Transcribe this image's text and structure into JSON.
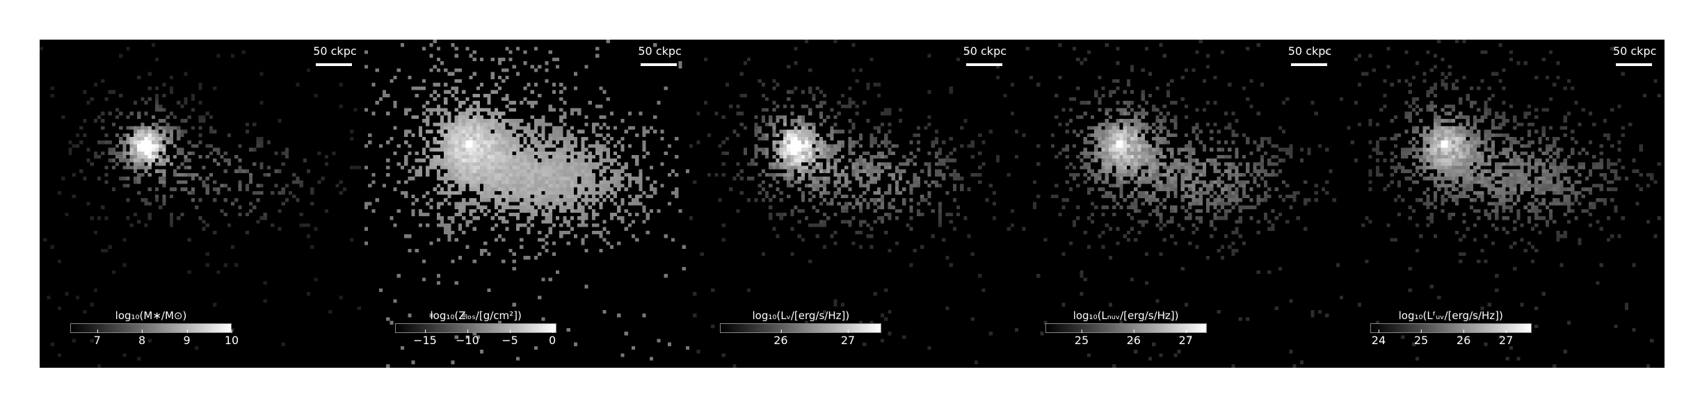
{
  "scale_label": "50 ckpc",
  "panels": [
    {
      "colorbar_label": "log₁₀(M∗/M⊙)",
      "ticks": [
        "7",
        "8",
        "9",
        "10"
      ],
      "tick_values": [
        7,
        8,
        9,
        10
      ],
      "range": [
        6.4,
        10.0
      ],
      "texture": "stellar-mass"
    },
    {
      "colorbar_label": "log₁₀(Zₗₒₛ/[g/cm²])",
      "ticks": [
        "−15",
        "−10",
        "−5",
        "0"
      ],
      "tick_values": [
        -15,
        -10,
        -5,
        0
      ],
      "range": [
        -18.5,
        0.5
      ],
      "texture": "metal-column"
    },
    {
      "colorbar_label": "log₁₀(Lᵥ/[erg/s/Hz])",
      "ticks": [
        "26",
        "27"
      ],
      "tick_values": [
        26,
        27
      ],
      "range": [
        25.1,
        27.5
      ],
      "texture": "v-band"
    },
    {
      "colorbar_label": "log₁₀(Lₙᵤᵥ/[erg/s/Hz])",
      "ticks": [
        "25",
        "26",
        "27"
      ],
      "tick_values": [
        25,
        26,
        27
      ],
      "range": [
        24.3,
        27.4
      ],
      "texture": "nuv"
    },
    {
      "colorbar_label": "log₁₀(Lᶠᵤᵥ/[erg/s/Hz])",
      "ticks": [
        "24",
        "25",
        "26",
        "27"
      ],
      "tick_values": [
        24,
        25,
        26,
        27
      ],
      "range": [
        23.8,
        27.6
      ],
      "texture": "fuv"
    }
  ],
  "colors": {
    "background": "#000000",
    "page": "#ffffff",
    "foreground": "#ffffff"
  }
}
